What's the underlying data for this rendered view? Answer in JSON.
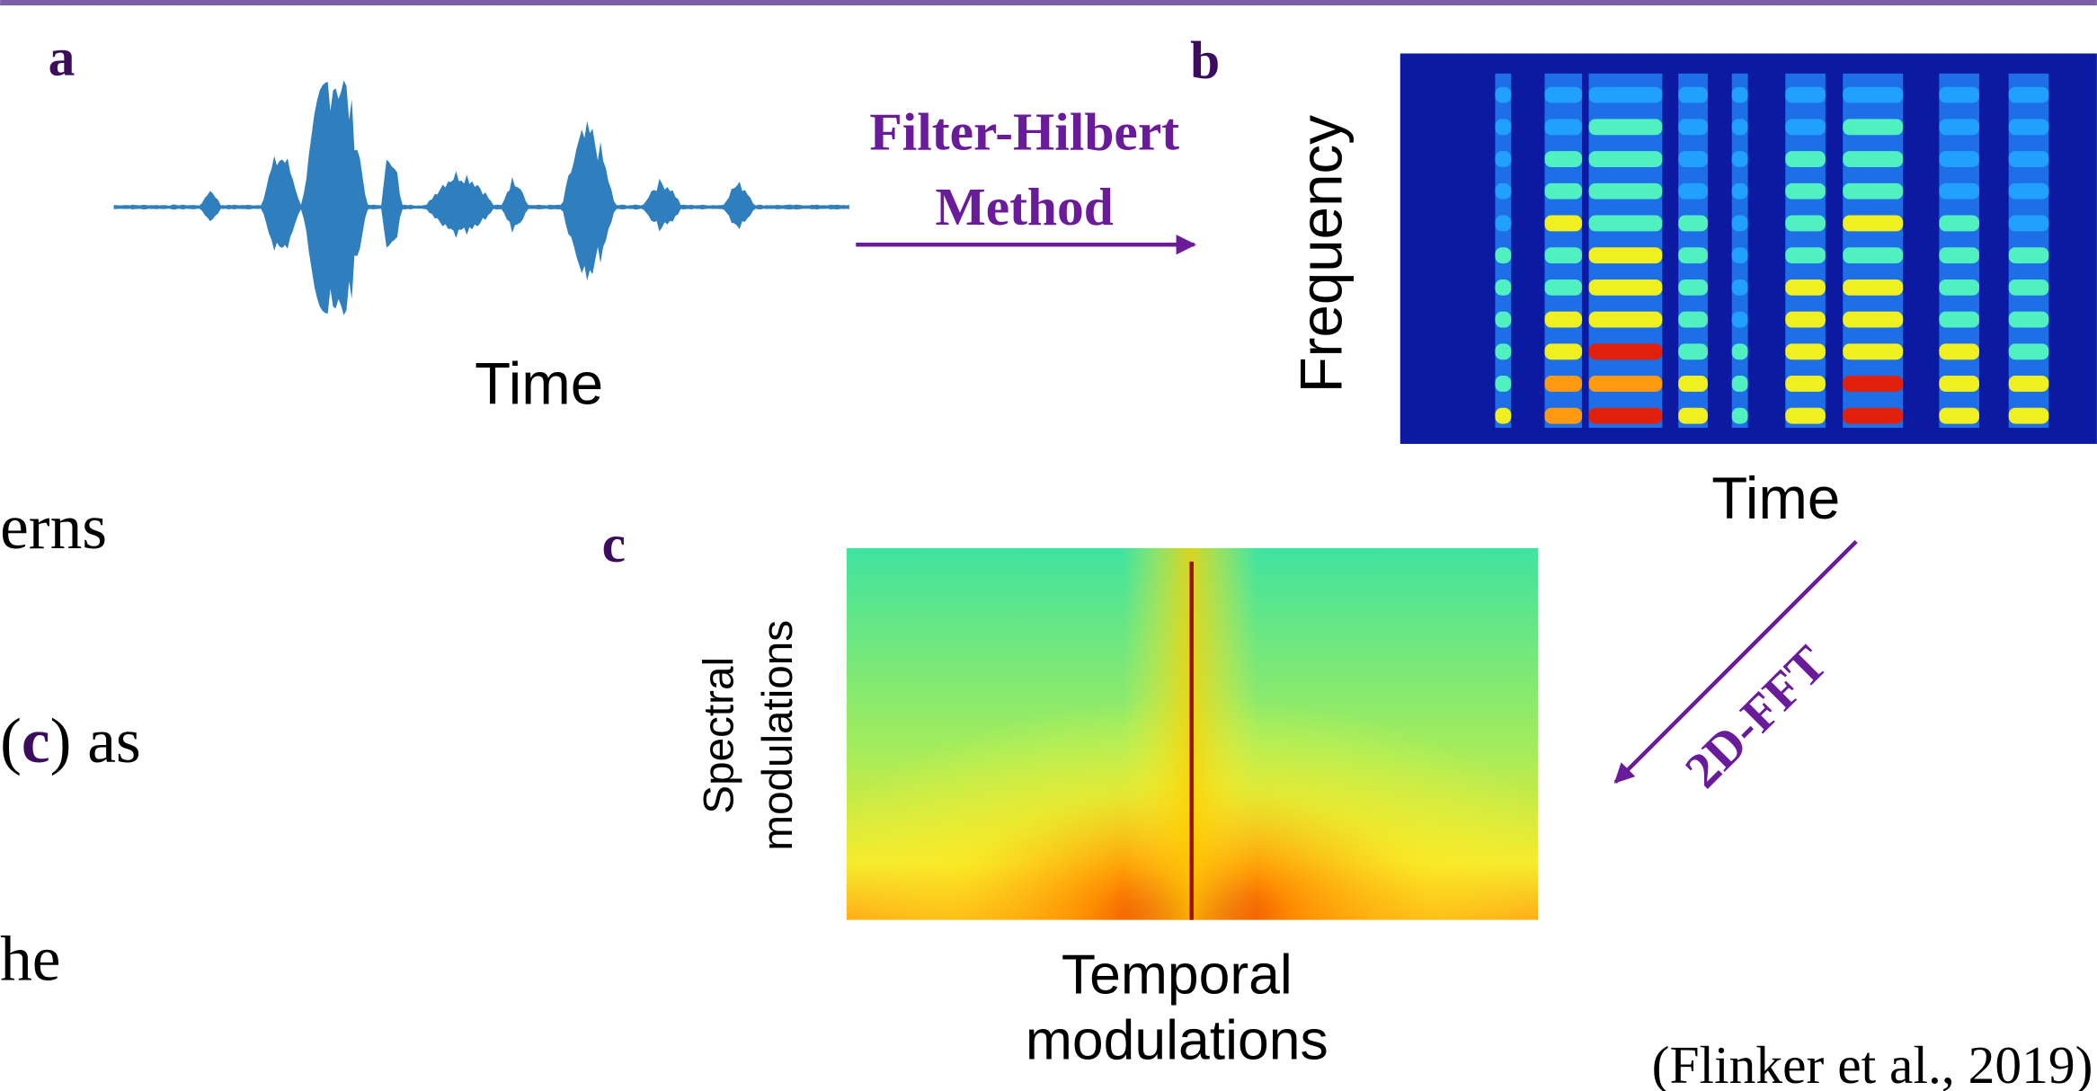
{
  "panels": {
    "a": {
      "label": "a",
      "x_axis": "Time"
    },
    "b": {
      "label": "b",
      "x_axis": "Time",
      "y_axis": "Frequency"
    },
    "c": {
      "label": "c",
      "x_axis": [
        "Temporal",
        "modulations"
      ],
      "y_axis": [
        "Spectral",
        "modulations"
      ]
    }
  },
  "arrows": {
    "a_to_b": [
      "Filter-Hilbert",
      "Method"
    ],
    "b_to_c": "2D-FFT"
  },
  "body_text": {
    "line1": "erns",
    "line2": {
      "open": "(",
      "ref": "c",
      "close": ") as"
    },
    "line3": "he"
  },
  "citation": "(Flinker et al., 2019)"
}
